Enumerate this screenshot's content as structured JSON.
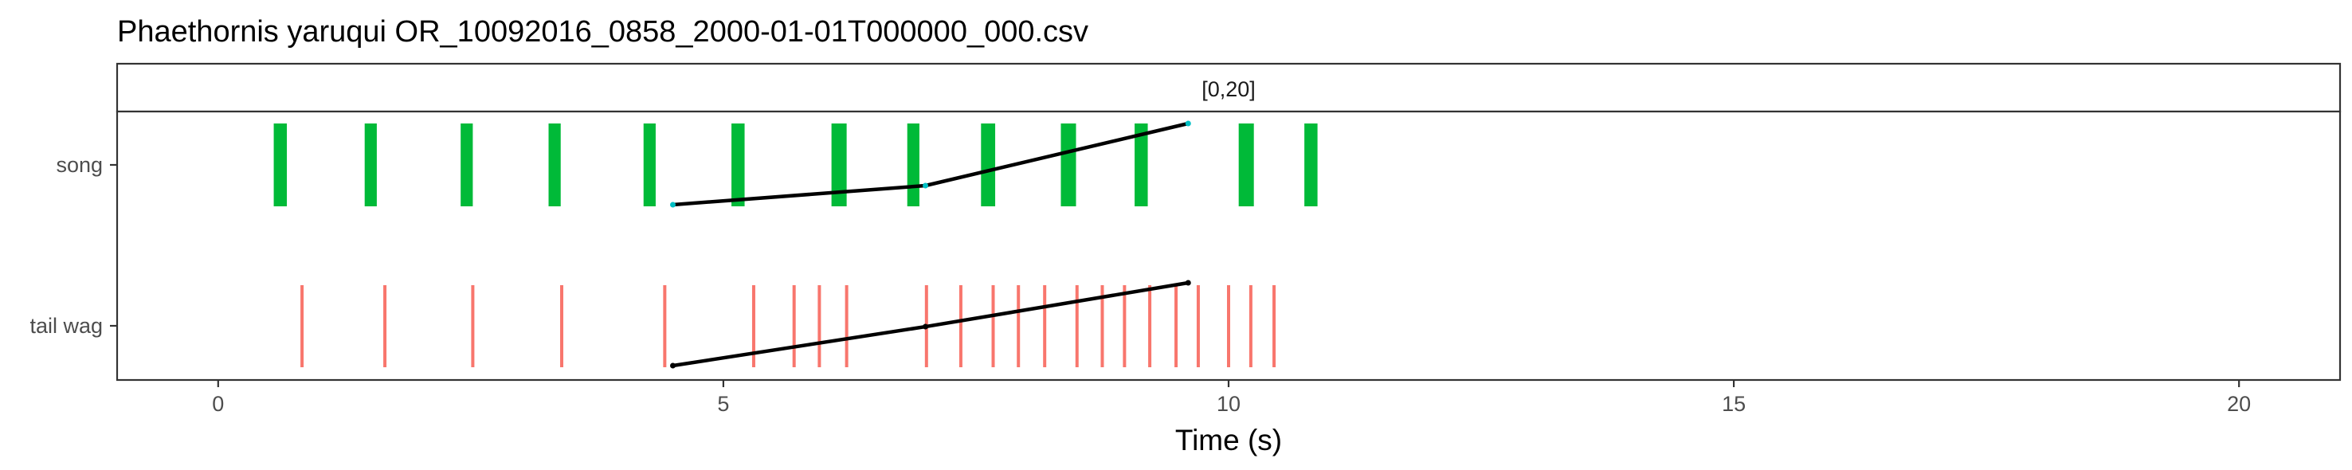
{
  "title": "Phaethornis yaruqui   OR_10092016_0858_2000-01-01T000000_000.csv",
  "colors": {
    "song": "#00BA38",
    "tail_wag": "#F8766D",
    "trend_line": "#000000",
    "trend_point": "#00BFC4",
    "panel_border": "#333333"
  },
  "chart_data": {
    "type": "segment",
    "title": "Phaethornis yaruqui   OR_10092016_0858_2000-01-01T000000_000.csv",
    "facet_label": "[0,20]",
    "xlabel": "Time (s)",
    "ylabel": "",
    "xlim": [
      -1,
      21
    ],
    "x_ticks": [
      0,
      5,
      10,
      15,
      20
    ],
    "categories": [
      "song",
      "tail wag"
    ],
    "grid": false,
    "series": [
      {
        "name": "song",
        "type": "interval",
        "intervals": [
          [
            0.55,
            0.68
          ],
          [
            1.45,
            1.57
          ],
          [
            2.4,
            2.52
          ],
          [
            3.27,
            3.39
          ],
          [
            4.21,
            4.33
          ],
          [
            5.08,
            5.21
          ],
          [
            6.07,
            6.22
          ],
          [
            6.82,
            6.94
          ],
          [
            7.55,
            7.69
          ],
          [
            8.34,
            8.49
          ],
          [
            9.07,
            9.2
          ],
          [
            10.1,
            10.25
          ],
          [
            10.75,
            10.88
          ]
        ],
        "trend": [
          [
            4.5,
            0.0
          ],
          [
            7.0,
            0.2
          ],
          [
            9.6,
            0.85
          ]
        ]
      },
      {
        "name": "tail wag",
        "type": "event",
        "times": [
          0.83,
          1.65,
          2.52,
          3.4,
          4.42,
          5.3,
          5.7,
          5.95,
          6.22,
          7.01,
          7.35,
          7.67,
          7.92,
          8.18,
          8.5,
          8.75,
          8.97,
          9.22,
          9.48,
          9.7,
          10.0,
          10.22,
          10.45
        ],
        "trend": [
          [
            4.5,
            0.0
          ],
          [
            7.0,
            0.4
          ],
          [
            9.6,
            0.85
          ]
        ]
      }
    ]
  }
}
